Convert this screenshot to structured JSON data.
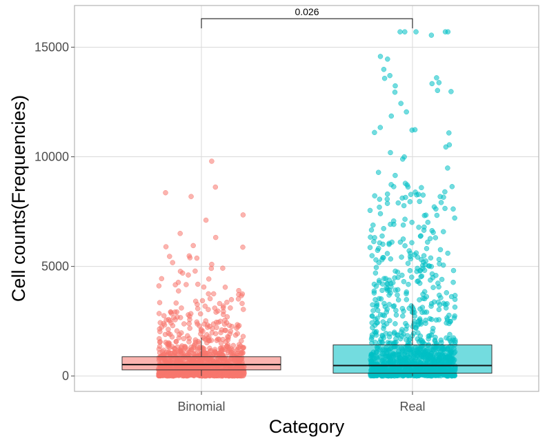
{
  "chart_data": {
    "type": "box+jitter",
    "xlabel": "Category",
    "ylabel": "Cell counts(Frequencies)",
    "ylim": [
      -700,
      16900
    ],
    "yticks": [
      0,
      5000,
      10000,
      15000
    ],
    "grid": true,
    "legend": "none",
    "categories": [
      "Binomial",
      "Real"
    ],
    "boxes": [
      {
        "category": "Binomial",
        "q1": 280,
        "median": 520,
        "q3": 880,
        "whisker_low": 0,
        "whisker_high": 1750,
        "fill": "#F8766D"
      },
      {
        "category": "Real",
        "q1": 130,
        "median": 480,
        "q3": 1420,
        "whisker_low": 0,
        "whisker_high": 3300,
        "fill": "#00BFC4"
      }
    ],
    "points_approx_count": {
      "Binomial": 1200,
      "Real": 1200
    },
    "comparison": {
      "from": "Binomial",
      "to": "Real",
      "label": "0.026",
      "y": 16300
    },
    "colors": {
      "binomial": "#F8766D",
      "real": "#00BFC4",
      "grid": "#d9d9d9",
      "panel_border": "#b3b3b3"
    }
  }
}
